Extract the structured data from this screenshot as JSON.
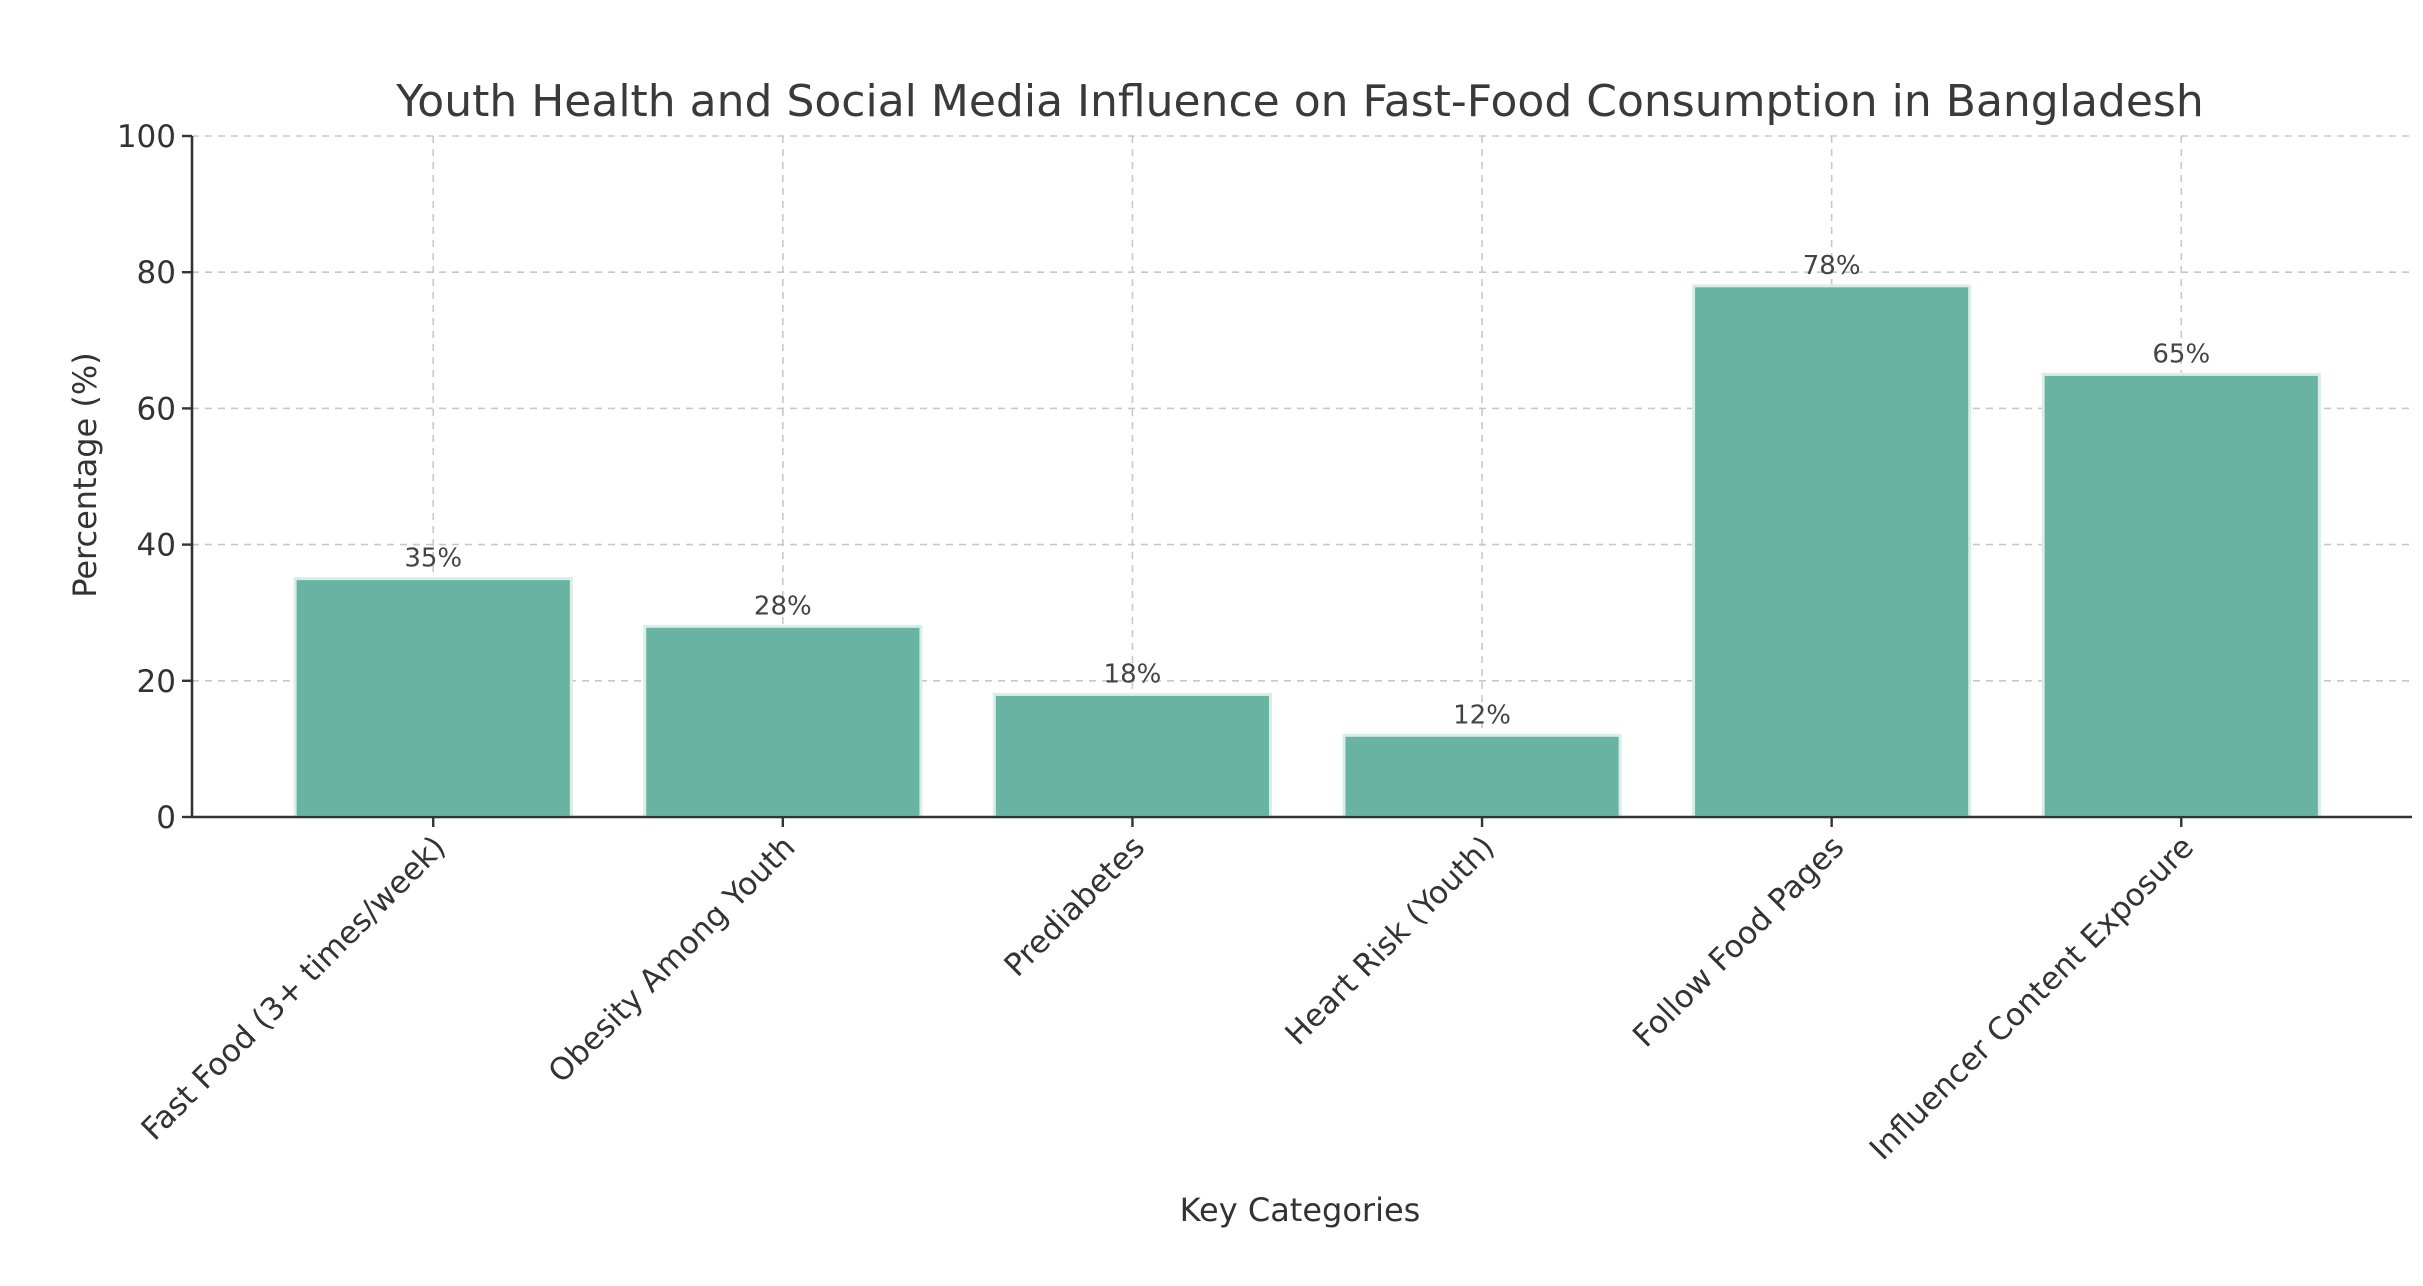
{
  "chart_data": {
    "type": "bar",
    "title": "Youth Health and Social Media Influence on Fast-Food Consumption in Bangladesh",
    "xlabel": "Key Categories",
    "ylabel": "Percentage (%)",
    "ylim": [
      0,
      100
    ],
    "yticks": [
      0,
      20,
      40,
      60,
      80,
      100
    ],
    "grid": true,
    "bar_color": "#69b3a2",
    "categories": [
      "Fast Food (3+ times/week)",
      "Obesity Among Youth",
      "Prediabetes",
      "Heart Risk (Youth)",
      "Follow Food Pages",
      "Influencer Content Exposure"
    ],
    "values": [
      35,
      28,
      18,
      12,
      78,
      65
    ],
    "data_labels": [
      "35%",
      "28%",
      "18%",
      "12%",
      "78%",
      "65%"
    ]
  }
}
